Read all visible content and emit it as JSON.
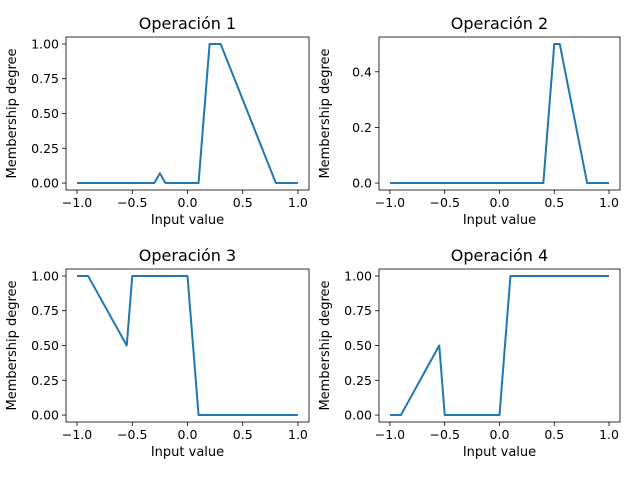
{
  "chart_data": [
    {
      "type": "line",
      "title": "Operación 1",
      "xlabel": "Input value",
      "ylabel": "Membership degree",
      "xlim": [
        -1.1,
        1.1
      ],
      "ylim": [
        -0.05,
        1.05
      ],
      "xticks": [
        -1.0,
        -0.5,
        0.0,
        0.5,
        1.0
      ],
      "xtick_labels": [
        "−1.0",
        "−0.5",
        "0.0",
        "0.5",
        "1.0"
      ],
      "yticks": [
        0.0,
        0.25,
        0.5,
        0.75,
        1.0
      ],
      "ytick_labels": [
        "0.00",
        "0.25",
        "0.50",
        "0.75",
        "1.00"
      ],
      "grid": false,
      "color": "#1f77b4",
      "series": [
        {
          "x": [
            -1.0,
            -0.3,
            -0.25,
            -0.2,
            0.1,
            0.2,
            0.3,
            0.8,
            1.0
          ],
          "y": [
            0.0,
            0.0,
            0.07,
            0.0,
            0.0,
            1.0,
            1.0,
            0.0,
            0.0
          ]
        }
      ]
    },
    {
      "type": "line",
      "title": "Operación 2",
      "xlabel": "Input value",
      "ylabel": "Membership degree",
      "xlim": [
        -1.1,
        1.1
      ],
      "ylim": [
        -0.025,
        0.525
      ],
      "xticks": [
        -1.0,
        -0.5,
        0.0,
        0.5,
        1.0
      ],
      "xtick_labels": [
        "−1.0",
        "−0.5",
        "0.0",
        "0.5",
        "1.0"
      ],
      "yticks": [
        0.0,
        0.2,
        0.4
      ],
      "ytick_labels": [
        "0.0",
        "0.2",
        "0.4"
      ],
      "grid": false,
      "color": "#1f77b4",
      "series": [
        {
          "x": [
            -1.0,
            0.4,
            0.5,
            0.55,
            0.8,
            1.0
          ],
          "y": [
            0.0,
            0.0,
            0.5,
            0.5,
            0.0,
            0.0
          ]
        }
      ]
    },
    {
      "type": "line",
      "title": "Operación 3",
      "xlabel": "Input value",
      "ylabel": "Membership degree",
      "xlim": [
        -1.1,
        1.1
      ],
      "ylim": [
        -0.05,
        1.05
      ],
      "xticks": [
        -1.0,
        -0.5,
        0.0,
        0.5,
        1.0
      ],
      "xtick_labels": [
        "−1.0",
        "−0.5",
        "0.0",
        "0.5",
        "1.0"
      ],
      "yticks": [
        0.0,
        0.25,
        0.5,
        0.75,
        1.0
      ],
      "ytick_labels": [
        "0.00",
        "0.25",
        "0.50",
        "0.75",
        "1.00"
      ],
      "grid": false,
      "color": "#1f77b4",
      "series": [
        {
          "x": [
            -1.0,
            -0.9,
            -0.55,
            -0.5,
            0.0,
            0.1,
            1.0
          ],
          "y": [
            1.0,
            1.0,
            0.5,
            1.0,
            1.0,
            0.0,
            0.0
          ]
        }
      ]
    },
    {
      "type": "line",
      "title": "Operación 4",
      "xlabel": "Input value",
      "ylabel": "Membership degree",
      "xlim": [
        -1.1,
        1.1
      ],
      "ylim": [
        -0.05,
        1.05
      ],
      "xticks": [
        -1.0,
        -0.5,
        0.0,
        0.5,
        1.0
      ],
      "xtick_labels": [
        "−1.0",
        "−0.5",
        "0.0",
        "0.5",
        "1.0"
      ],
      "yticks": [
        0.0,
        0.25,
        0.5,
        0.75,
        1.0
      ],
      "ytick_labels": [
        "0.00",
        "0.25",
        "0.50",
        "0.75",
        "1.00"
      ],
      "grid": false,
      "color": "#1f77b4",
      "series": [
        {
          "x": [
            -1.0,
            -0.9,
            -0.55,
            -0.5,
            0.0,
            0.1,
            1.0
          ],
          "y": [
            0.0,
            0.0,
            0.5,
            0.0,
            0.0,
            1.0,
            1.0
          ]
        }
      ]
    }
  ]
}
